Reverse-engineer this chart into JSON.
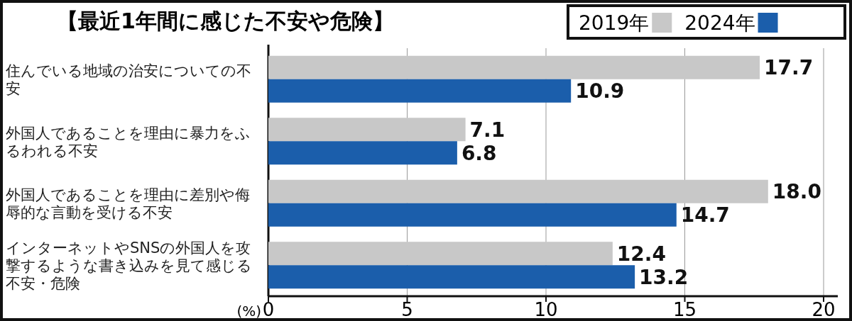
{
  "chart_data": {
    "type": "bar",
    "orientation": "horizontal",
    "title": "【最近1年間に感じた不安や危険】",
    "categories": [
      "住んでいる地域の治安についての不安",
      "外国人であることを理由に暴力をふるわれる不安",
      "外国人であることを理由に差別や侮辱的な言動を受ける不安",
      "インターネットやSNSの外国人を攻撃するような書き込みを見て感じる不安・危険"
    ],
    "series": [
      {
        "name": "2019年",
        "color": "#c8c8c8",
        "values": [
          17.7,
          7.1,
          18.0,
          12.4
        ]
      },
      {
        "name": "2024年",
        "color": "#1b5eab",
        "values": [
          10.9,
          6.8,
          14.7,
          13.2
        ]
      }
    ],
    "value_labels": [
      [
        "17.7",
        "7.1",
        "18.0",
        "12.4"
      ],
      [
        "10.9",
        "6.8",
        "14.7",
        "13.2"
      ]
    ],
    "xlim": [
      0,
      20
    ],
    "xticks": [
      0,
      5,
      10,
      15,
      20
    ],
    "grid": "x",
    "legend": "top right",
    "annotations": [
      "(%)"
    ]
  }
}
